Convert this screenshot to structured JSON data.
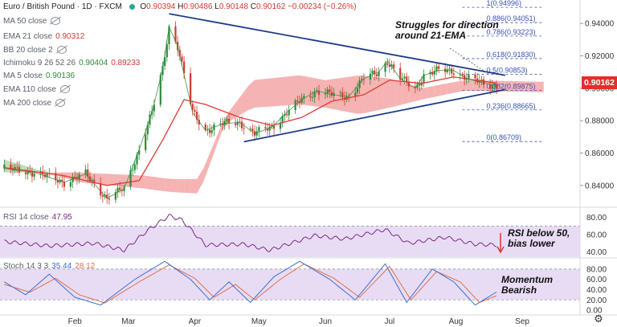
{
  "header": {
    "symbol": "Euro / British Pound · 1D · FXCM",
    "open_label": "O",
    "open": "0.90394",
    "high_label": "H",
    "high": "0.90486",
    "low_label": "L",
    "low": "0.90148",
    "close_label": "C",
    "close": "0.90162",
    "change": "−0.00234 (−0.26%)"
  },
  "indicators": [
    {
      "label": "MA 50 close",
      "value": "",
      "hidden": true
    },
    {
      "label": "EMA 21 close",
      "value": "0.90312",
      "hidden": false,
      "color": "#d23a32"
    },
    {
      "label": "BB 20 close 2",
      "value": "",
      "hidden": true
    },
    {
      "label": "Ichimoku 9 26 52 26",
      "value": "0.90404",
      "value2": "0.89233",
      "hidden": false
    },
    {
      "label": "MA 5 close",
      "value": "0.90136",
      "hidden": false,
      "color": "#2e8b3a"
    },
    {
      "label": "EMA 110 close",
      "value": "",
      "hidden": true
    },
    {
      "label": "MA 200 close",
      "value": "",
      "hidden": true
    }
  ],
  "annotations": {
    "price": "Struggles for direction\naround 21-EMA",
    "rsi": "RSI below 50,\nbias lower",
    "stoch": "Momentum\nBearish"
  },
  "last_price": "0.90162",
  "rsi_header": {
    "label": "RSI 14 close",
    "value": "47.95"
  },
  "stoch_header": {
    "label": "Stoch 14 3 3",
    "k": "35.44",
    "d": "28.12"
  },
  "colors": {
    "up": "#2e8b3a",
    "down": "#d23a32",
    "ema21": "#e03a35",
    "ma5": "#2e8b3a",
    "cloud_bull": "#a6d4a0",
    "cloud_bear": "#f29a9a",
    "trend": "#1e3a8a",
    "fib": "#3a4fb0",
    "rsi": "#7b2a8a",
    "rsi_band": "#e8dcf5",
    "stoch_k": "#3b6fd0",
    "stoch_d": "#e0704a",
    "price_tag": "#e0302c"
  },
  "chart_data": [
    {
      "type": "candlestick",
      "title": "Euro / British Pound · 1D · FXCM",
      "x_tick_labels": [
        "Feb",
        "Mar",
        "Apr",
        "May",
        "Jun",
        "Jul",
        "Aug",
        "Sep"
      ],
      "y_tick_labels": [
        "0.84000",
        "0.86000",
        "0.88000",
        "0.90000",
        "0.92000",
        "0.94000"
      ],
      "ylim": [
        0.828,
        0.952
      ],
      "close_path": [
        {
          "date": "2020-01-03",
          "close": 0.8505
        },
        {
          "date": "2020-01-17",
          "close": 0.848
        },
        {
          "date": "2020-01-31",
          "close": 0.842
        },
        {
          "date": "2020-02-10",
          "close": 0.847
        },
        {
          "date": "2020-02-20",
          "close": 0.832
        },
        {
          "date": "2020-02-28",
          "close": 0.838
        },
        {
          "date": "2020-03-06",
          "close": 0.862
        },
        {
          "date": "2020-03-12",
          "close": 0.885
        },
        {
          "date": "2020-03-17",
          "close": 0.912
        },
        {
          "date": "2020-03-20",
          "close": 0.938
        },
        {
          "date": "2020-03-24",
          "close": 0.926
        },
        {
          "date": "2020-03-31",
          "close": 0.885
        },
        {
          "date": "2020-04-06",
          "close": 0.874
        },
        {
          "date": "2020-04-14",
          "close": 0.878
        },
        {
          "date": "2020-04-22",
          "close": 0.879
        },
        {
          "date": "2020-04-29",
          "close": 0.872
        },
        {
          "date": "2020-05-07",
          "close": 0.876
        },
        {
          "date": "2020-05-14",
          "close": 0.885
        },
        {
          "date": "2020-05-21",
          "close": 0.893
        },
        {
          "date": "2020-05-28",
          "close": 0.8985
        },
        {
          "date": "2020-06-04",
          "close": 0.896
        },
        {
          "date": "2020-06-12",
          "close": 0.895
        },
        {
          "date": "2020-06-19",
          "close": 0.906
        },
        {
          "date": "2020-06-26",
          "close": 0.91
        },
        {
          "date": "2020-06-30",
          "close": 0.917
        },
        {
          "date": "2020-07-06",
          "close": 0.906
        },
        {
          "date": "2020-07-13",
          "close": 0.9
        },
        {
          "date": "2020-07-17",
          "close": 0.908
        },
        {
          "date": "2020-07-24",
          "close": 0.911
        },
        {
          "date": "2020-07-31",
          "close": 0.911
        },
        {
          "date": "2020-08-06",
          "close": 0.906
        },
        {
          "date": "2020-08-12",
          "close": 0.904
        },
        {
          "date": "2020-08-18",
          "close": 0.902
        },
        {
          "date": "2020-08-20",
          "close": 0.90162
        }
      ],
      "ema21": [
        {
          "date": "2020-01-03",
          "value": 0.851
        },
        {
          "date": "2020-01-31",
          "value": 0.846
        },
        {
          "date": "2020-02-20",
          "value": 0.84
        },
        {
          "date": "2020-03-06",
          "value": 0.843
        },
        {
          "date": "2020-03-17",
          "value": 0.868
        },
        {
          "date": "2020-03-27",
          "value": 0.893
        },
        {
          "date": "2020-04-06",
          "value": 0.89
        },
        {
          "date": "2020-04-22",
          "value": 0.882
        },
        {
          "date": "2020-05-07",
          "value": 0.877
        },
        {
          "date": "2020-05-21",
          "value": 0.882
        },
        {
          "date": "2020-06-04",
          "value": 0.892
        },
        {
          "date": "2020-06-19",
          "value": 0.896
        },
        {
          "date": "2020-07-01",
          "value": 0.905
        },
        {
          "date": "2020-07-16",
          "value": 0.903
        },
        {
          "date": "2020-07-31",
          "value": 0.907
        },
        {
          "date": "2020-08-20",
          "value": 0.90312
        }
      ],
      "ichimoku_cloud_a": [
        {
          "date": "2020-01-03",
          "value": 0.856
        },
        {
          "date": "2020-02-07",
          "value": 0.842
        },
        {
          "date": "2020-03-09",
          "value": 0.838
        },
        {
          "date": "2020-03-20",
          "value": 0.836
        },
        {
          "date": "2020-04-03",
          "value": 0.835
        },
        {
          "date": "2020-04-15",
          "value": 0.878
        },
        {
          "date": "2020-04-28",
          "value": 0.888
        },
        {
          "date": "2020-05-20",
          "value": 0.89
        },
        {
          "date": "2020-06-01",
          "value": 0.888
        },
        {
          "date": "2020-06-17",
          "value": 0.884
        },
        {
          "date": "2020-07-01",
          "value": 0.888
        },
        {
          "date": "2020-07-16",
          "value": 0.893
        },
        {
          "date": "2020-08-05",
          "value": 0.8985
        },
        {
          "date": "2020-09-10",
          "value": 0.8975
        }
      ],
      "ichimoku_cloud_b": [
        {
          "date": "2020-01-03",
          "value": 0.848
        },
        {
          "date": "2020-02-07",
          "value": 0.848
        },
        {
          "date": "2020-03-09",
          "value": 0.846
        },
        {
          "date": "2020-03-20",
          "value": 0.844
        },
        {
          "date": "2020-04-03",
          "value": 0.844
        },
        {
          "date": "2020-04-15",
          "value": 0.882
        },
        {
          "date": "2020-04-28",
          "value": 0.905
        },
        {
          "date": "2020-05-20",
          "value": 0.908
        },
        {
          "date": "2020-06-01",
          "value": 0.905
        },
        {
          "date": "2020-06-17",
          "value": 0.908
        },
        {
          "date": "2020-07-01",
          "value": 0.906
        },
        {
          "date": "2020-07-16",
          "value": 0.9
        },
        {
          "date": "2020-08-05",
          "value": 0.905
        },
        {
          "date": "2020-09-10",
          "value": 0.904
        }
      ],
      "fib_levels": [
        {
          "label": "1(0.94996)",
          "value": 0.94996
        },
        {
          "label": "0.886(0.94051)",
          "value": 0.94051
        },
        {
          "label": "0.786(0.93223)",
          "value": 0.93223
        },
        {
          "label": "0.618(0.91830)",
          "value": 0.9183
        },
        {
          "label": "0.5(0.90853)",
          "value": 0.90853
        },
        {
          "label": "0.382(0.89875)",
          "value": 0.89875
        },
        {
          "label": "0.236(0.88665)",
          "value": 0.88665
        },
        {
          "label": "0(0.86709)",
          "value": 0.86709
        }
      ],
      "trendlines": [
        {
          "name": "upper",
          "from": {
            "date": "2020-03-20",
            "value": 0.946
          },
          "to": {
            "date": "2020-08-24",
            "value": 0.908
          }
        },
        {
          "name": "lower",
          "from": {
            "date": "2020-04-24",
            "value": 0.867
          },
          "to": {
            "date": "2020-08-24",
            "value": 0.8992
          }
        }
      ]
    },
    {
      "type": "line",
      "title": "RSI 14 close",
      "y_tick_labels": [
        "40.00",
        "60.00",
        "80.00"
      ],
      "ylim": [
        34,
        88
      ],
      "band": [
        30,
        70
      ],
      "series": [
        {
          "values": [
            {
              "date": "2020-01-03",
              "value": 52
            },
            {
              "date": "2020-01-24",
              "value": 47
            },
            {
              "date": "2020-02-14",
              "value": 50
            },
            {
              "date": "2020-02-28",
              "value": 42
            },
            {
              "date": "2020-03-10",
              "value": 65
            },
            {
              "date": "2020-03-20",
              "value": 82
            },
            {
              "date": "2020-03-26",
              "value": 77
            },
            {
              "date": "2020-04-06",
              "value": 48
            },
            {
              "date": "2020-04-24",
              "value": 49
            },
            {
              "date": "2020-05-06",
              "value": 42
            },
            {
              "date": "2020-05-27",
              "value": 59
            },
            {
              "date": "2020-06-10",
              "value": 55
            },
            {
              "date": "2020-06-29",
              "value": 66
            },
            {
              "date": "2020-07-10",
              "value": 50
            },
            {
              "date": "2020-07-27",
              "value": 57
            },
            {
              "date": "2020-08-10",
              "value": 49
            },
            {
              "date": "2020-08-20",
              "value": 47.95
            }
          ]
        }
      ]
    },
    {
      "type": "line",
      "title": "Stoch 14 3 3",
      "y_tick_labels": [
        "0.00",
        "20.00",
        "40.00",
        "60.00",
        "80.00"
      ],
      "ylim": [
        -3,
        100
      ],
      "band": [
        20,
        80
      ],
      "series": [
        {
          "values": [
            {
              "date": "2020-01-03",
              "value": 55
            },
            {
              "date": "2020-01-13",
              "value": 30
            },
            {
              "date": "2020-01-24",
              "value": 70
            },
            {
              "date": "2020-02-05",
              "value": 25
            },
            {
              "date": "2020-02-17",
              "value": 10
            },
            {
              "date": "2020-03-04",
              "value": 60
            },
            {
              "date": "2020-03-18",
              "value": 95
            },
            {
              "date": "2020-03-30",
              "value": 60
            },
            {
              "date": "2020-04-08",
              "value": 20
            },
            {
              "date": "2020-04-17",
              "value": 55
            },
            {
              "date": "2020-04-27",
              "value": 15
            },
            {
              "date": "2020-05-08",
              "value": 65
            },
            {
              "date": "2020-05-20",
              "value": 95
            },
            {
              "date": "2020-06-03",
              "value": 60
            },
            {
              "date": "2020-06-15",
              "value": 20
            },
            {
              "date": "2020-06-29",
              "value": 90
            },
            {
              "date": "2020-07-09",
              "value": 15
            },
            {
              "date": "2020-07-21",
              "value": 80
            },
            {
              "date": "2020-07-31",
              "value": 55
            },
            {
              "date": "2020-08-10",
              "value": 10
            },
            {
              "date": "2020-08-20",
              "value": 35.44
            }
          ]
        },
        {
          "values": [
            {
              "date": "2020-01-03",
              "value": 50
            },
            {
              "date": "2020-01-15",
              "value": 35
            },
            {
              "date": "2020-01-27",
              "value": 62
            },
            {
              "date": "2020-02-07",
              "value": 30
            },
            {
              "date": "2020-02-19",
              "value": 14
            },
            {
              "date": "2020-03-06",
              "value": 55
            },
            {
              "date": "2020-03-20",
              "value": 88
            },
            {
              "date": "2020-04-01",
              "value": 62
            },
            {
              "date": "2020-04-10",
              "value": 25
            },
            {
              "date": "2020-04-20",
              "value": 50
            },
            {
              "date": "2020-04-29",
              "value": 20
            },
            {
              "date": "2020-05-11",
              "value": 60
            },
            {
              "date": "2020-05-22",
              "value": 90
            },
            {
              "date": "2020-06-05",
              "value": 62
            },
            {
              "date": "2020-06-17",
              "value": 25
            },
            {
              "date": "2020-07-01",
              "value": 85
            },
            {
              "date": "2020-07-11",
              "value": 20
            },
            {
              "date": "2020-07-23",
              "value": 75
            },
            {
              "date": "2020-08-03",
              "value": 55
            },
            {
              "date": "2020-08-12",
              "value": 15
            },
            {
              "date": "2020-08-20",
              "value": 28.12
            }
          ]
        }
      ]
    }
  ]
}
